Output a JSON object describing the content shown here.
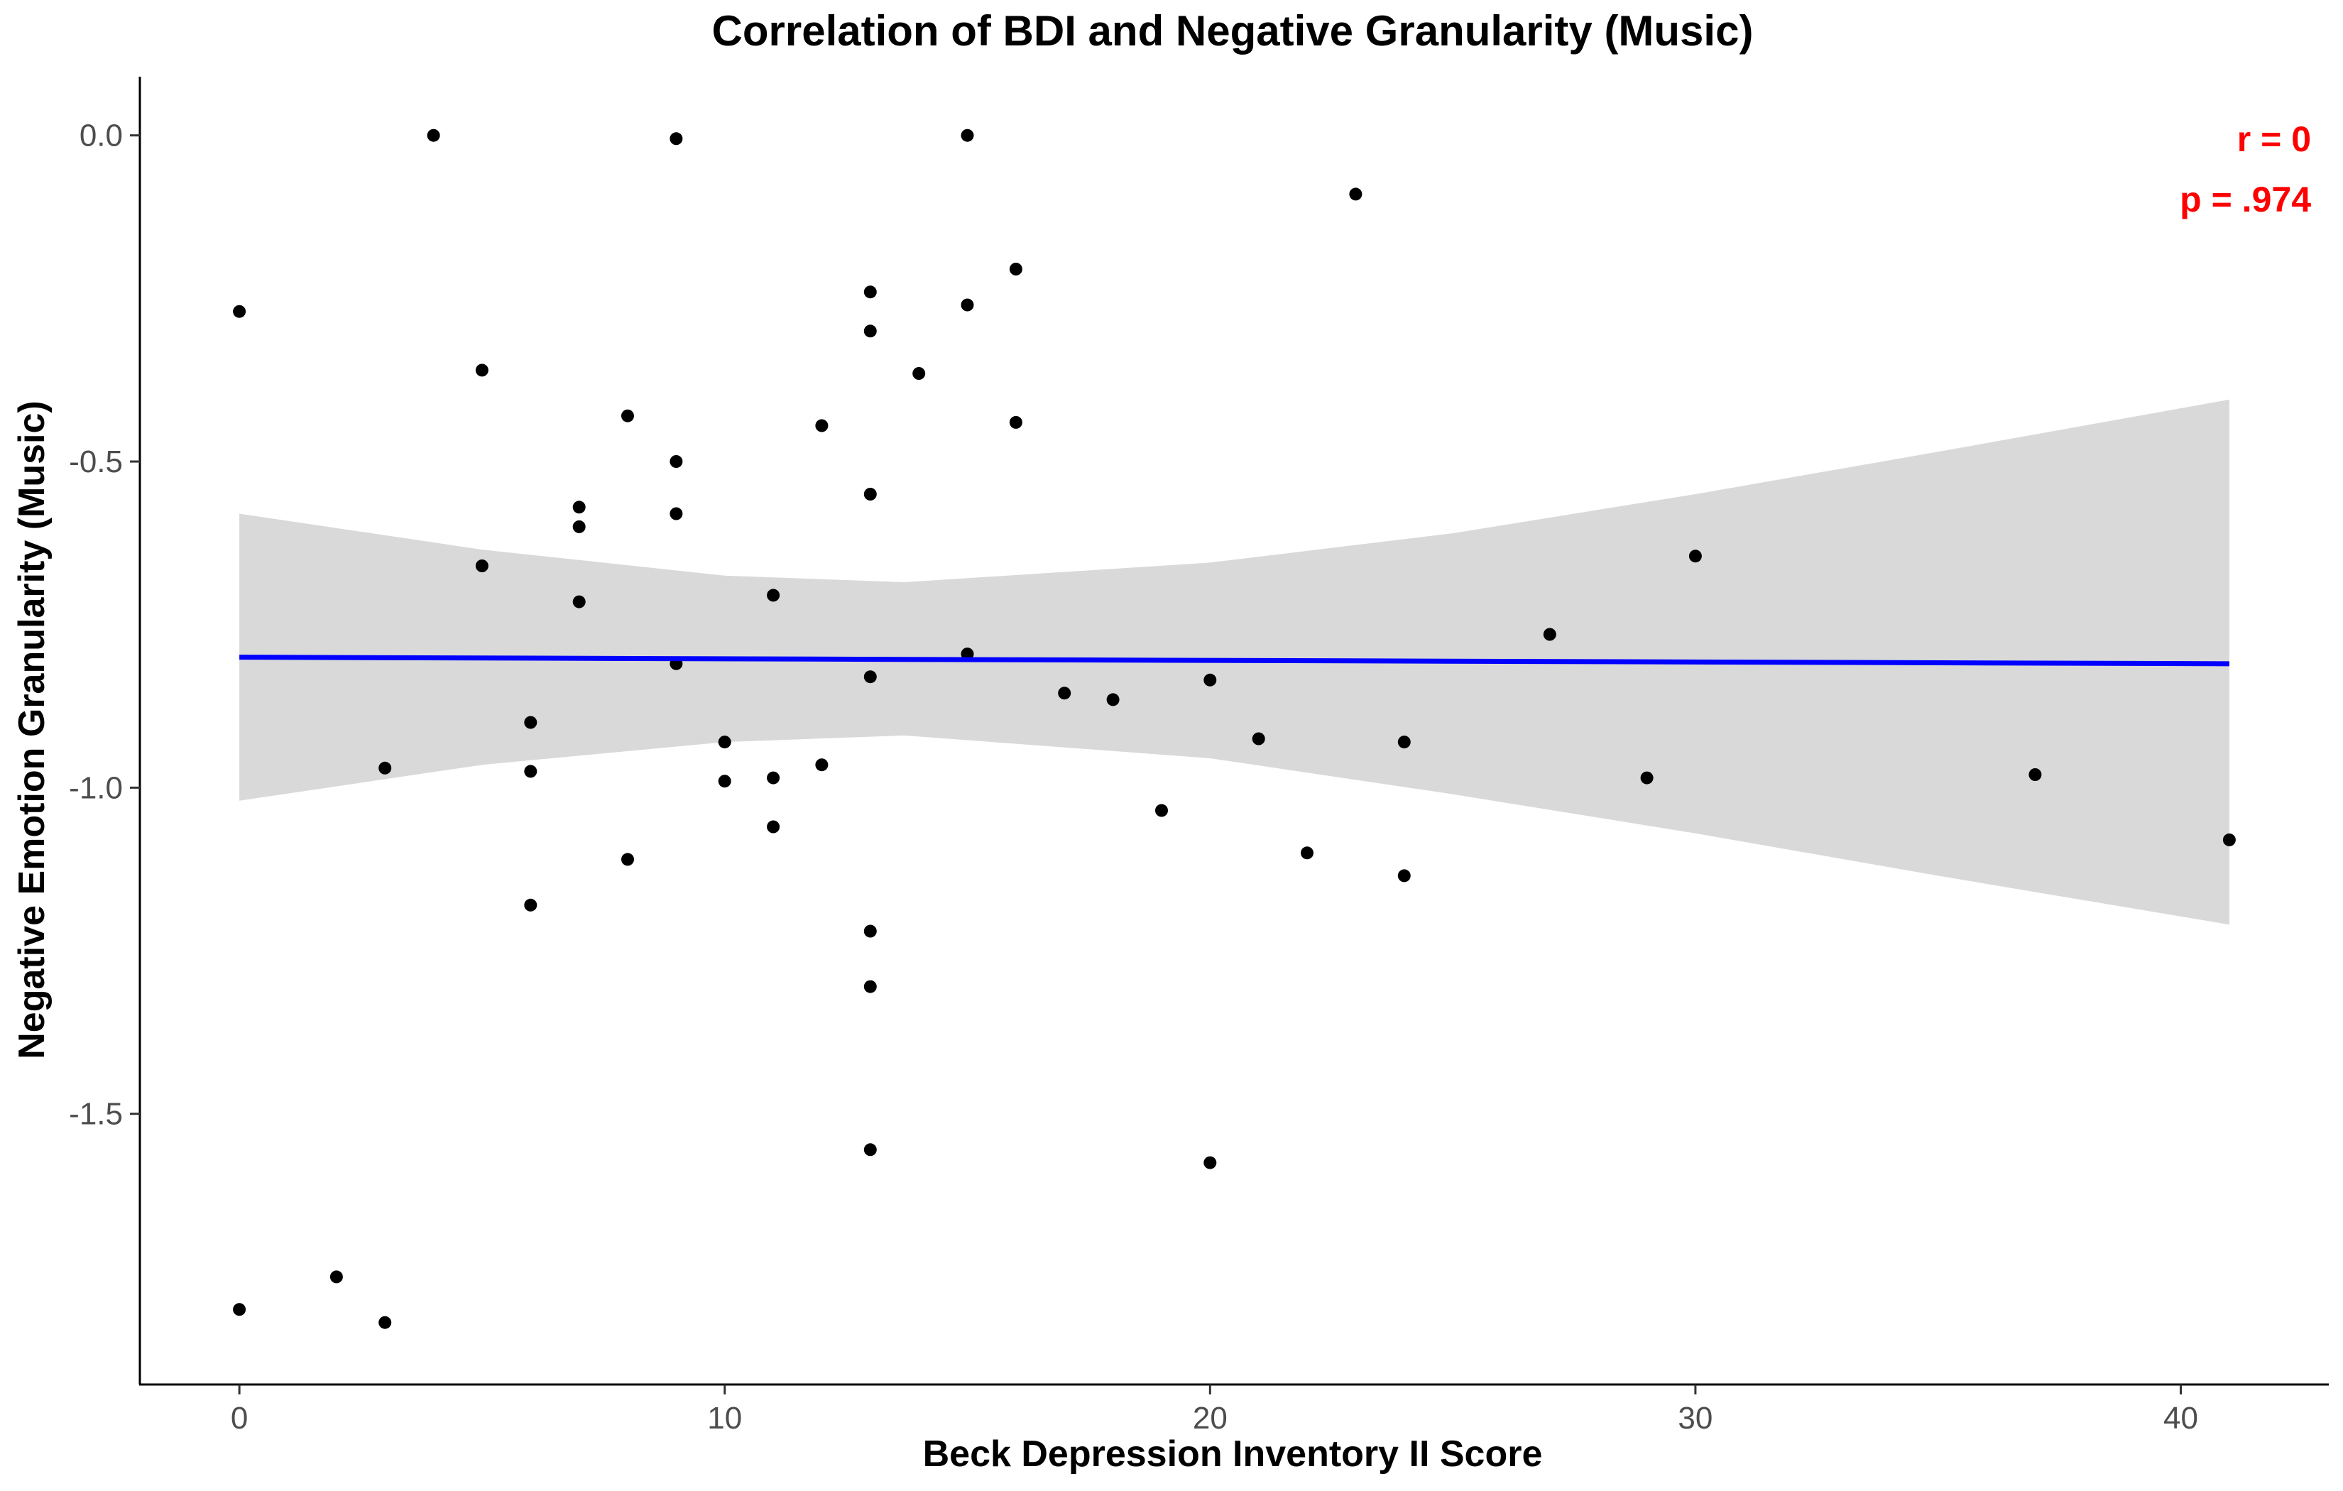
{
  "chart_data": {
    "type": "scatter",
    "title": "Correlation of BDI and Negative Granularity (Music)",
    "xlabel": "Beck Depression Inventory II Score",
    "ylabel": "Negative Emotion Granularity (Music)",
    "xlim": [
      -2.05,
      43.05
    ],
    "ylim": [
      -1.915,
      0.09
    ],
    "x_ticks": [
      0,
      10,
      20,
      30,
      40
    ],
    "y_ticks": [
      0.0,
      -0.5,
      -1.0,
      -1.5
    ],
    "x_tick_labels": [
      "0",
      "10",
      "20",
      "30",
      "40"
    ],
    "y_tick_labels": [
      "0.0",
      "-0.5",
      "-1.0",
      "-1.5"
    ],
    "grid": false,
    "legend": "none",
    "point_color": "#000000",
    "line_color": "#0000ff",
    "band_color": "#d9d9d9",
    "annotation_color": "#ff0000",
    "annotations": [
      "r = 0",
      "p = .974"
    ],
    "points": [
      {
        "x": 0,
        "y": -0.27
      },
      {
        "x": 0,
        "y": -1.8
      },
      {
        "x": 2,
        "y": -1.75
      },
      {
        "x": 3,
        "y": -0.97
      },
      {
        "x": 3,
        "y": -1.82
      },
      {
        "x": 4,
        "y": 0.0
      },
      {
        "x": 5,
        "y": -0.36
      },
      {
        "x": 5,
        "y": -0.66
      },
      {
        "x": 6,
        "y": -0.9
      },
      {
        "x": 6,
        "y": -0.975
      },
      {
        "x": 6,
        "y": -1.18
      },
      {
        "x": 7,
        "y": -0.57
      },
      {
        "x": 7,
        "y": -0.6
      },
      {
        "x": 7,
        "y": -0.715
      },
      {
        "x": 8,
        "y": -0.43
      },
      {
        "x": 8,
        "y": -1.11
      },
      {
        "x": 9,
        "y": -0.005
      },
      {
        "x": 9,
        "y": -0.5
      },
      {
        "x": 9,
        "y": -0.58
      },
      {
        "x": 9,
        "y": -0.81
      },
      {
        "x": 10,
        "y": -0.93
      },
      {
        "x": 10,
        "y": -0.99
      },
      {
        "x": 11,
        "y": -0.705
      },
      {
        "x": 11,
        "y": -0.985
      },
      {
        "x": 11,
        "y": -1.06
      },
      {
        "x": 12,
        "y": -0.445
      },
      {
        "x": 12,
        "y": -0.965
      },
      {
        "x": 13,
        "y": -0.24
      },
      {
        "x": 13,
        "y": -0.3
      },
      {
        "x": 13,
        "y": -0.55
      },
      {
        "x": 13,
        "y": -0.83
      },
      {
        "x": 13,
        "y": -1.22
      },
      {
        "x": 13,
        "y": -1.305
      },
      {
        "x": 13,
        "y": -1.555
      },
      {
        "x": 14,
        "y": -0.365
      },
      {
        "x": 15,
        "y": 0.0
      },
      {
        "x": 15,
        "y": -0.26
      },
      {
        "x": 15,
        "y": -0.795
      },
      {
        "x": 16,
        "y": -0.205
      },
      {
        "x": 16,
        "y": -0.44
      },
      {
        "x": 17,
        "y": -0.855
      },
      {
        "x": 18,
        "y": -0.865
      },
      {
        "x": 19,
        "y": -1.035
      },
      {
        "x": 20,
        "y": -0.835
      },
      {
        "x": 20,
        "y": -1.575
      },
      {
        "x": 21,
        "y": -0.925
      },
      {
        "x": 22,
        "y": -1.1
      },
      {
        "x": 23,
        "y": -0.09
      },
      {
        "x": 24,
        "y": -0.93
      },
      {
        "x": 24,
        "y": -1.135
      },
      {
        "x": 27,
        "y": -0.765
      },
      {
        "x": 29,
        "y": -0.985
      },
      {
        "x": 30,
        "y": -0.645
      },
      {
        "x": 37,
        "y": -0.98
      },
      {
        "x": 41,
        "y": -1.08
      }
    ],
    "regression_line": [
      {
        "x": 0,
        "y": -0.8
      },
      {
        "x": 41,
        "y": -0.81
      }
    ],
    "confidence_band": [
      {
        "x": 0,
        "lower": -1.02,
        "upper": -0.58
      },
      {
        "x": 5,
        "lower": -0.965,
        "upper": -0.635
      },
      {
        "x": 10,
        "lower": -0.93,
        "upper": -0.675
      },
      {
        "x": 13.7,
        "lower": -0.92,
        "upper": -0.685
      },
      {
        "x": 20,
        "lower": -0.955,
        "upper": -0.655
      },
      {
        "x": 25,
        "lower": -1.01,
        "upper": -0.61
      },
      {
        "x": 30,
        "lower": -1.07,
        "upper": -0.55
      },
      {
        "x": 35,
        "lower": -1.135,
        "upper": -0.485
      },
      {
        "x": 41,
        "lower": -1.21,
        "upper": -0.405
      }
    ]
  }
}
